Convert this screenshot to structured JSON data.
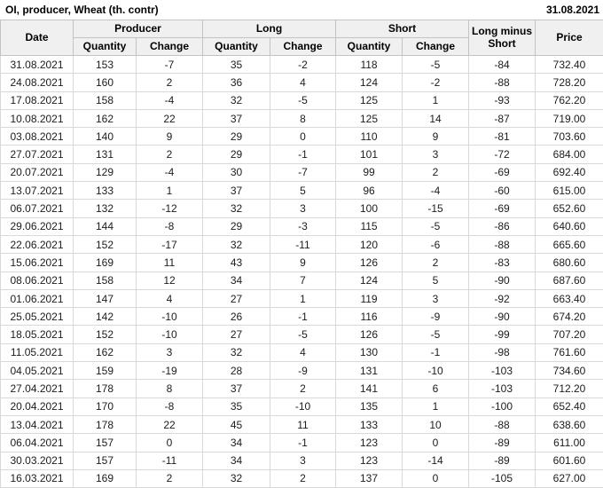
{
  "header": {
    "title": "OI, producer, Wheat (th. contr)",
    "date": "31.08.2021"
  },
  "colors": {
    "positive": "#008000",
    "negative": "#cc0000",
    "header_bg": "#f0f0f0"
  },
  "table": {
    "columns": {
      "date": "Date",
      "producer": "Producer",
      "long": "Long",
      "short": "Short",
      "long_minus_short": "Long minus Short",
      "price": "Price",
      "quantity": "Quantity",
      "change": "Change"
    },
    "rows": [
      {
        "date": "31.08.2021",
        "producer": {
          "quantity": "153",
          "change": "-7",
          "change_color": "negative"
        },
        "long": {
          "quantity": "35",
          "change": "-2",
          "change_color": "negative"
        },
        "short": {
          "quantity": "118",
          "change": "-5",
          "change_color": "negative"
        },
        "long_minus_short": "-84",
        "price": "732.40"
      },
      {
        "date": "24.08.2021",
        "producer": {
          "quantity": "160",
          "change": "2",
          "change_color": "positive"
        },
        "long": {
          "quantity": "36",
          "change": "4",
          "change_color": "positive"
        },
        "short": {
          "quantity": "124",
          "change": "-2",
          "change_color": "negative"
        },
        "long_minus_short": "-88",
        "price": "728.20"
      },
      {
        "date": "17.08.2021",
        "producer": {
          "quantity": "158",
          "change": "-4",
          "change_color": "negative"
        },
        "long": {
          "quantity": "32",
          "change": "-5",
          "change_color": "negative"
        },
        "short": {
          "quantity": "125",
          "change": "1",
          "change_color": "positive"
        },
        "long_minus_short": "-93",
        "price": "762.20"
      },
      {
        "date": "10.08.2021",
        "producer": {
          "quantity": "162",
          "change": "22",
          "change_color": "positive"
        },
        "long": {
          "quantity": "37",
          "change": "8",
          "change_color": "positive"
        },
        "short": {
          "quantity": "125",
          "change": "14",
          "change_color": "positive"
        },
        "long_minus_short": "-87",
        "price": "719.00"
      },
      {
        "date": "03.08.2021",
        "producer": {
          "quantity": "140",
          "change": "9",
          "change_color": "positive"
        },
        "long": {
          "quantity": "29",
          "change": "0",
          "change_color": "negative"
        },
        "short": {
          "quantity": "110",
          "change": "9",
          "change_color": "positive"
        },
        "long_minus_short": "-81",
        "price": "703.60"
      },
      {
        "date": "27.07.2021",
        "producer": {
          "quantity": "131",
          "change": "2",
          "change_color": "positive"
        },
        "long": {
          "quantity": "29",
          "change": "-1",
          "change_color": "negative"
        },
        "short": {
          "quantity": "101",
          "change": "3",
          "change_color": "positive"
        },
        "long_minus_short": "-72",
        "price": "684.00"
      },
      {
        "date": "20.07.2021",
        "producer": {
          "quantity": "129",
          "change": "-4",
          "change_color": "negative"
        },
        "long": {
          "quantity": "30",
          "change": "-7",
          "change_color": "negative"
        },
        "short": {
          "quantity": "99",
          "change": "2",
          "change_color": "positive"
        },
        "long_minus_short": "-69",
        "price": "692.40"
      },
      {
        "date": "13.07.2021",
        "producer": {
          "quantity": "133",
          "change": "1",
          "change_color": "positive"
        },
        "long": {
          "quantity": "37",
          "change": "5",
          "change_color": "positive"
        },
        "short": {
          "quantity": "96",
          "change": "-4",
          "change_color": "negative"
        },
        "long_minus_short": "-60",
        "price": "615.00"
      },
      {
        "date": "06.07.2021",
        "producer": {
          "quantity": "132",
          "change": "-12",
          "change_color": "negative"
        },
        "long": {
          "quantity": "32",
          "change": "3",
          "change_color": "positive"
        },
        "short": {
          "quantity": "100",
          "change": "-15",
          "change_color": "negative"
        },
        "long_minus_short": "-69",
        "price": "652.60"
      },
      {
        "date": "29.06.2021",
        "producer": {
          "quantity": "144",
          "change": "-8",
          "change_color": "negative"
        },
        "long": {
          "quantity": "29",
          "change": "-3",
          "change_color": "negative"
        },
        "short": {
          "quantity": "115",
          "change": "-5",
          "change_color": "negative"
        },
        "long_minus_short": "-86",
        "price": "640.60"
      },
      {
        "date": "22.06.2021",
        "producer": {
          "quantity": "152",
          "change": "-17",
          "change_color": "negative"
        },
        "long": {
          "quantity": "32",
          "change": "-11",
          "change_color": "negative"
        },
        "short": {
          "quantity": "120",
          "change": "-6",
          "change_color": "negative"
        },
        "long_minus_short": "-88",
        "price": "665.60"
      },
      {
        "date": "15.06.2021",
        "producer": {
          "quantity": "169",
          "change": "11",
          "change_color": "positive"
        },
        "long": {
          "quantity": "43",
          "change": "9",
          "change_color": "positive"
        },
        "short": {
          "quantity": "126",
          "change": "2",
          "change_color": "positive"
        },
        "long_minus_short": "-83",
        "price": "680.60"
      },
      {
        "date": "08.06.2021",
        "producer": {
          "quantity": "158",
          "change": "12",
          "change_color": "positive"
        },
        "long": {
          "quantity": "34",
          "change": "7",
          "change_color": "positive"
        },
        "short": {
          "quantity": "124",
          "change": "5",
          "change_color": "positive"
        },
        "long_minus_short": "-90",
        "price": "687.60"
      },
      {
        "date": "01.06.2021",
        "producer": {
          "quantity": "147",
          "change": "4",
          "change_color": "positive"
        },
        "long": {
          "quantity": "27",
          "change": "1",
          "change_color": "positive"
        },
        "short": {
          "quantity": "119",
          "change": "3",
          "change_color": "positive"
        },
        "long_minus_short": "-92",
        "price": "663.40"
      },
      {
        "date": "25.05.2021",
        "producer": {
          "quantity": "142",
          "change": "-10",
          "change_color": "negative"
        },
        "long": {
          "quantity": "26",
          "change": "-1",
          "change_color": "negative"
        },
        "short": {
          "quantity": "116",
          "change": "-9",
          "change_color": "negative"
        },
        "long_minus_short": "-90",
        "price": "674.20"
      },
      {
        "date": "18.05.2021",
        "producer": {
          "quantity": "152",
          "change": "-10",
          "change_color": "negative"
        },
        "long": {
          "quantity": "27",
          "change": "-5",
          "change_color": "negative"
        },
        "short": {
          "quantity": "126",
          "change": "-5",
          "change_color": "negative"
        },
        "long_minus_short": "-99",
        "price": "707.20"
      },
      {
        "date": "11.05.2021",
        "producer": {
          "quantity": "162",
          "change": "3",
          "change_color": "positive"
        },
        "long": {
          "quantity": "32",
          "change": "4",
          "change_color": "positive"
        },
        "short": {
          "quantity": "130",
          "change": "-1",
          "change_color": "negative"
        },
        "long_minus_short": "-98",
        "price": "761.60"
      },
      {
        "date": "04.05.2021",
        "producer": {
          "quantity": "159",
          "change": "-19",
          "change_color": "negative"
        },
        "long": {
          "quantity": "28",
          "change": "-9",
          "change_color": "negative"
        },
        "short": {
          "quantity": "131",
          "change": "-10",
          "change_color": "negative"
        },
        "long_minus_short": "-103",
        "price": "734.60"
      },
      {
        "date": "27.04.2021",
        "producer": {
          "quantity": "178",
          "change": "8",
          "change_color": "positive"
        },
        "long": {
          "quantity": "37",
          "change": "2",
          "change_color": "positive"
        },
        "short": {
          "quantity": "141",
          "change": "6",
          "change_color": "positive"
        },
        "long_minus_short": "-103",
        "price": "712.20"
      },
      {
        "date": "20.04.2021",
        "producer": {
          "quantity": "170",
          "change": "-8",
          "change_color": "negative"
        },
        "long": {
          "quantity": "35",
          "change": "-10",
          "change_color": "negative"
        },
        "short": {
          "quantity": "135",
          "change": "1",
          "change_color": "positive"
        },
        "long_minus_short": "-100",
        "price": "652.40"
      },
      {
        "date": "13.04.2021",
        "producer": {
          "quantity": "178",
          "change": "22",
          "change_color": "positive"
        },
        "long": {
          "quantity": "45",
          "change": "11",
          "change_color": "positive"
        },
        "short": {
          "quantity": "133",
          "change": "10",
          "change_color": "positive"
        },
        "long_minus_short": "-88",
        "price": "638.60"
      },
      {
        "date": "06.04.2021",
        "producer": {
          "quantity": "157",
          "change": "0",
          "change_color": "negative"
        },
        "long": {
          "quantity": "34",
          "change": "-1",
          "change_color": "negative"
        },
        "short": {
          "quantity": "123",
          "change": "0",
          "change_color": "positive"
        },
        "long_minus_short": "-89",
        "price": "611.00"
      },
      {
        "date": "30.03.2021",
        "producer": {
          "quantity": "157",
          "change": "-11",
          "change_color": "negative"
        },
        "long": {
          "quantity": "34",
          "change": "3",
          "change_color": "positive"
        },
        "short": {
          "quantity": "123",
          "change": "-14",
          "change_color": "negative"
        },
        "long_minus_short": "-89",
        "price": "601.60"
      },
      {
        "date": "16.03.2021",
        "producer": {
          "quantity": "169",
          "change": "2",
          "change_color": "positive"
        },
        "long": {
          "quantity": "32",
          "change": "2",
          "change_color": "positive"
        },
        "short": {
          "quantity": "137",
          "change": "0",
          "change_color": "negative"
        },
        "long_minus_short": "-105",
        "price": "627.00"
      }
    ]
  }
}
